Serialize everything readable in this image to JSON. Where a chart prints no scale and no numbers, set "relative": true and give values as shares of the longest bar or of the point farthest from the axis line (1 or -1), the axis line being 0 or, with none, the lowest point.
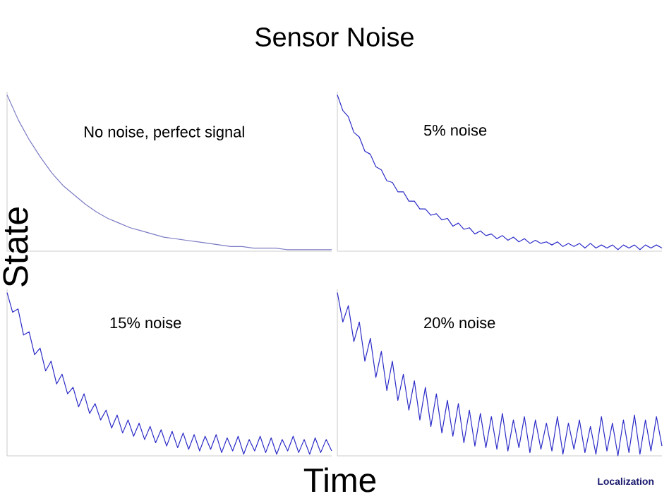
{
  "chart_data": [
    {
      "type": "line",
      "title": "Sensor Noise",
      "ylabel": "State",
      "relative": true,
      "annotations": [
        "No noise, perfect signal"
      ],
      "categories": [
        null,
        null,
        null,
        null,
        null,
        null,
        null,
        null,
        null,
        null,
        null,
        null,
        null,
        null,
        null,
        null,
        null,
        null,
        null,
        null,
        null,
        null,
        null,
        null,
        null,
        null,
        null,
        null,
        null,
        null
      ],
      "series": [
        {
          "color": "#7b7bc4",
          "values": [
            1.0,
            0.84,
            0.71,
            0.6,
            0.5,
            0.42,
            0.36,
            0.3,
            0.25,
            0.21,
            0.18,
            0.15,
            0.13,
            0.11,
            0.09,
            0.08,
            0.07,
            0.06,
            0.05,
            0.04,
            0.03,
            0.03,
            0.02,
            0.02,
            0.02,
            0.01,
            0.01,
            0.01,
            0.01,
            0.01
          ]
        }
      ]
    },
    {
      "type": "line",
      "relative": true,
      "annotations": [
        "5% noise"
      ],
      "categories": [
        null,
        null,
        null,
        null,
        null,
        null,
        null,
        null,
        null,
        null,
        null,
        null,
        null,
        null,
        null,
        null,
        null,
        null,
        null,
        null,
        null,
        null,
        null,
        null,
        null,
        null,
        null,
        null,
        null,
        null,
        null,
        null,
        null,
        null,
        null,
        null,
        null,
        null,
        null,
        null,
        null,
        null,
        null,
        null,
        null,
        null,
        null,
        null,
        null,
        null,
        null,
        null,
        null,
        null,
        null,
        null,
        null,
        null,
        null,
        null
      ],
      "series": [
        {
          "color": "#2b2bc8",
          "values": [
            1.0,
            0.9,
            0.86,
            0.76,
            0.73,
            0.64,
            0.62,
            0.54,
            0.52,
            0.45,
            0.44,
            0.38,
            0.38,
            0.32,
            0.32,
            0.27,
            0.27,
            0.23,
            0.24,
            0.2,
            0.21,
            0.16,
            0.18,
            0.14,
            0.15,
            0.11,
            0.13,
            0.1,
            0.11,
            0.08,
            0.1,
            0.07,
            0.09,
            0.06,
            0.08,
            0.05,
            0.07,
            0.05,
            0.06,
            0.04,
            0.06,
            0.03,
            0.05,
            0.03,
            0.05,
            0.02,
            0.05,
            0.02,
            0.04,
            0.02,
            0.04,
            0.01,
            0.04,
            0.02,
            0.04,
            0.01,
            0.04,
            0.02,
            0.04,
            0.02
          ]
        }
      ]
    },
    {
      "type": "line",
      "xlabel": "Time",
      "relative": true,
      "annotations": [
        "15% noise"
      ],
      "categories": [
        null,
        null,
        null,
        null,
        null,
        null,
        null,
        null,
        null,
        null,
        null,
        null,
        null,
        null,
        null,
        null,
        null,
        null,
        null,
        null,
        null,
        null,
        null,
        null,
        null,
        null,
        null,
        null,
        null,
        null,
        null,
        null,
        null,
        null,
        null,
        null,
        null,
        null,
        null,
        null,
        null,
        null,
        null,
        null,
        null,
        null,
        null,
        null,
        null,
        null,
        null,
        null,
        null,
        null,
        null,
        null,
        null,
        null,
        null,
        null
      ],
      "series": [
        {
          "color": "#2b2bc8",
          "values": [
            1.0,
            0.88,
            0.9,
            0.74,
            0.76,
            0.62,
            0.66,
            0.52,
            0.58,
            0.44,
            0.5,
            0.38,
            0.42,
            0.3,
            0.38,
            0.26,
            0.32,
            0.22,
            0.28,
            0.17,
            0.25,
            0.14,
            0.22,
            0.12,
            0.2,
            0.1,
            0.18,
            0.08,
            0.16,
            0.06,
            0.15,
            0.05,
            0.14,
            0.04,
            0.13,
            0.03,
            0.12,
            0.04,
            0.13,
            0.02,
            0.11,
            0.03,
            0.12,
            0.01,
            0.1,
            0.03,
            0.12,
            0.02,
            0.11,
            0.01,
            0.1,
            0.03,
            0.12,
            0.02,
            0.1,
            0.01,
            0.11,
            0.02,
            0.1,
            0.03
          ]
        }
      ]
    },
    {
      "type": "line",
      "relative": true,
      "annotations": [
        "20% noise",
        "Localization"
      ],
      "categories": [
        null,
        null,
        null,
        null,
        null,
        null,
        null,
        null,
        null,
        null,
        null,
        null,
        null,
        null,
        null,
        null,
        null,
        null,
        null,
        null,
        null,
        null,
        null,
        null,
        null,
        null,
        null,
        null,
        null,
        null,
        null,
        null,
        null,
        null,
        null,
        null,
        null,
        null,
        null,
        null,
        null,
        null,
        null,
        null,
        null,
        null,
        null,
        null,
        null,
        null,
        null,
        null,
        null,
        null,
        null,
        null,
        null,
        null,
        null,
        null
      ],
      "series": [
        {
          "color": "#2b2bc8",
          "values": [
            1.0,
            0.82,
            0.92,
            0.7,
            0.82,
            0.58,
            0.72,
            0.48,
            0.64,
            0.4,
            0.58,
            0.34,
            0.5,
            0.28,
            0.46,
            0.22,
            0.42,
            0.18,
            0.38,
            0.14,
            0.34,
            0.12,
            0.32,
            0.08,
            0.28,
            0.06,
            0.26,
            0.05,
            0.24,
            0.04,
            0.26,
            0.03,
            0.22,
            0.05,
            0.24,
            0.02,
            0.22,
            0.04,
            0.2,
            0.03,
            0.24,
            0.01,
            0.2,
            0.04,
            0.22,
            0.02,
            0.18,
            0.01,
            0.24,
            0.03,
            0.2,
            0.0,
            0.22,
            0.02,
            0.25,
            0.01,
            0.22,
            0.03,
            0.24,
            0.06
          ]
        }
      ]
    }
  ]
}
